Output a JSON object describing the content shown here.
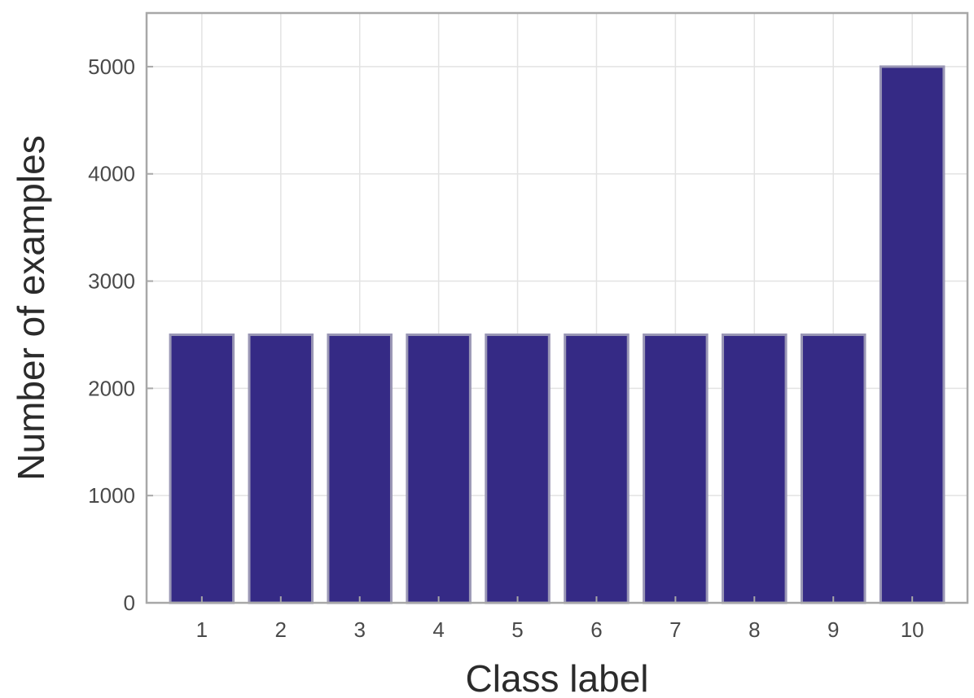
{
  "chart_data": {
    "type": "bar",
    "categories": [
      "1",
      "2",
      "3",
      "4",
      "5",
      "6",
      "7",
      "8",
      "9",
      "10"
    ],
    "values": [
      2500,
      2500,
      2500,
      2500,
      2500,
      2500,
      2500,
      2500,
      2500,
      5000
    ],
    "title": "",
    "xlabel": "Class label",
    "ylabel": "Number of examples",
    "ylim": [
      0,
      5500
    ],
    "yticks": [
      0,
      1000,
      2000,
      3000,
      4000,
      5000
    ],
    "grid": true,
    "colors": {
      "bar_fill": "#352a85",
      "bar_edge": "#9a97b5"
    }
  }
}
